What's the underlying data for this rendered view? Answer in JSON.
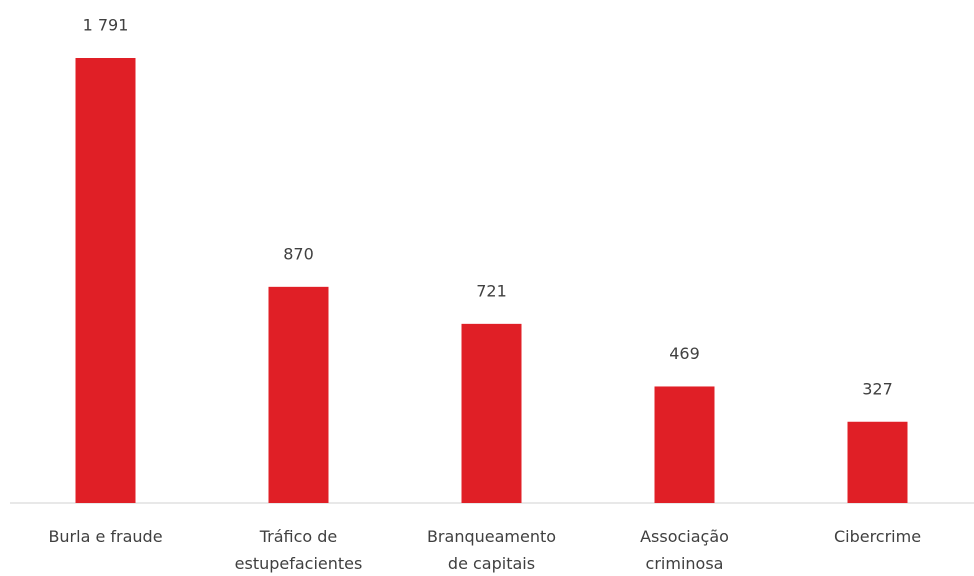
{
  "chart_data": {
    "type": "bar",
    "categories": [
      [
        "Burla e fraude"
      ],
      [
        "Tráfico de",
        "estupefacientes"
      ],
      [
        "Branqueamento",
        "de capitais"
      ],
      [
        "Associação",
        "criminosa"
      ],
      [
        "Cibercrime"
      ]
    ],
    "values": [
      1791,
      870,
      721,
      469,
      327
    ],
    "value_labels": [
      "1 791",
      "870",
      "721",
      "469",
      "327"
    ],
    "color": "#e01f26"
  }
}
